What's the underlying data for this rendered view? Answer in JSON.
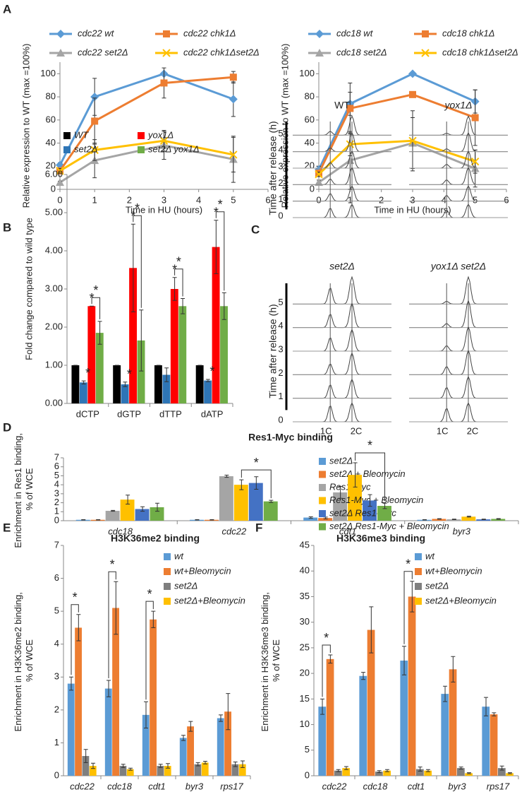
{
  "panel_labels": [
    "A",
    "B",
    "C",
    "D",
    "E",
    "F"
  ],
  "flow_cytometry": {
    "column_titles": [
      "WT",
      "yox1Δ",
      "set2Δ",
      "yox1Δ set2Δ"
    ],
    "axis_label": "Time after release (h)",
    "time_ticks": [
      5,
      4,
      3,
      2,
      1,
      0
    ],
    "peak_labels": [
      "1C",
      "2C"
    ]
  },
  "chart_data": [
    {
      "type": "line",
      "x_label": "Time in HU (hours)",
      "y_label": "Relative expression to WT  (max =100%)",
      "x": [
        0,
        1,
        3,
        5
      ],
      "xlim": [
        0,
        6
      ],
      "xticks": [
        0,
        1,
        2,
        3,
        4,
        5,
        6
      ],
      "ylim": [
        0,
        110
      ],
      "yticks": [
        0,
        20,
        40,
        60,
        80,
        100
      ],
      "series": [
        {
          "name": "cdc22 wt",
          "color": "#5b9bd5",
          "values": [
            21,
            80,
            100,
            78
          ],
          "errors": [
            2,
            16,
            0,
            15
          ]
        },
        {
          "name": "cdc22 chk1Δ",
          "color": "#ed7d31",
          "values": [
            16,
            59,
            92,
            97
          ],
          "errors": [
            2,
            20,
            13,
            5
          ]
        },
        {
          "name": "cdc22 set2Δ",
          "color": "#a5a5a5",
          "values": [
            6,
            25,
            38,
            26
          ],
          "errors": [
            1,
            15,
            12,
            20
          ]
        },
        {
          "name": "cdc22 chk1Δset2Δ",
          "color": "#ffc000",
          "values": [
            16,
            34,
            42,
            30
          ],
          "errors": [
            2,
            9,
            9,
            15
          ]
        }
      ]
    },
    {
      "type": "line",
      "x_label": "Time in HU (hours)",
      "y_label": "Relative expression to WT  (max =100%)",
      "x": [
        0,
        1,
        3,
        5
      ],
      "xlim": [
        0,
        6
      ],
      "xticks": [
        0,
        1,
        2,
        3,
        4,
        5,
        6
      ],
      "ylim": [
        0,
        110
      ],
      "yticks": [
        0,
        20,
        40,
        60,
        80,
        100
      ],
      "series": [
        {
          "name": "cdc18 wt",
          "color": "#5b9bd5",
          "values": [
            17,
            74,
            100,
            76
          ],
          "errors": [
            3,
            10,
            0,
            10
          ]
        },
        {
          "name": "cdc18 chk1Δ",
          "color": "#ed7d31",
          "values": [
            14,
            70,
            82,
            62
          ],
          "errors": [
            2,
            22,
            0,
            24
          ]
        },
        {
          "name": "cdc18 set2Δ",
          "color": "#a5a5a5",
          "values": [
            6,
            25,
            40,
            18
          ],
          "errors": [
            2,
            25,
            22,
            16
          ]
        },
        {
          "name": "cdc18 chk1Δset2Δ",
          "color": "#ffc000",
          "values": [
            13,
            39,
            42,
            24
          ],
          "errors": [
            2,
            10,
            26,
            10
          ]
        }
      ]
    },
    {
      "type": "bar",
      "y_label": "Fold change compared to wild type",
      "categories": [
        "dCTP",
        "dGTP",
        "dTTP",
        "dATP"
      ],
      "ylim": [
        0,
        6
      ],
      "yticks": [
        {
          "value": 0,
          "label": "0.00"
        },
        {
          "value": 1,
          "label": "1.00"
        },
        {
          "value": 2,
          "label": "2.00"
        },
        {
          "value": 3,
          "label": "3.00"
        },
        {
          "value": 4,
          "label": "4.00"
        },
        {
          "value": 5,
          "label": "5.00"
        },
        {
          "value": 6,
          "label": "6.00"
        }
      ],
      "series": [
        {
          "name": "WT",
          "color": "#000000",
          "values": [
            1,
            1,
            1,
            1
          ],
          "errors": [
            0,
            0,
            0,
            0
          ]
        },
        {
          "name": "set2Δ",
          "color": "#2e75b6",
          "values": [
            0.55,
            0.5,
            0.75,
            0.6
          ],
          "errors": [
            0.04,
            0.06,
            0.18,
            0.03
          ]
        },
        {
          "name": "yox1Δ",
          "color": "#ff0000",
          "values": [
            2.55,
            3.55,
            3.0,
            4.1
          ],
          "errors": [
            0,
            1.15,
            0.3,
            0.7
          ]
        },
        {
          "name": "set2Δ yox1Δ",
          "color": "#70ad47",
          "values": [
            1.85,
            1.65,
            2.55,
            2.55
          ],
          "errors": [
            0.3,
            0.8,
            0.2,
            0.35
          ]
        }
      ],
      "annotations": [
        "*",
        "*",
        "*",
        "*",
        "*",
        "*",
        "*",
        "*",
        "*",
        "*",
        "*"
      ]
    },
    {
      "type": "bar",
      "title": "Res1-Myc binding",
      "y_label": "Enrichment in Res1 binding, % of WCE",
      "categories": [
        "cdc18",
        "cdc22",
        "cdt1",
        "byr3"
      ],
      "ylim": [
        0,
        7
      ],
      "yticks": [
        0,
        1,
        2,
        3,
        4,
        5,
        6,
        7
      ],
      "series": [
        {
          "name": "set2Δ",
          "color": "#5b9bd5",
          "values": [
            0.1,
            0.1,
            0.35,
            0.1
          ],
          "errors": [
            0.02,
            0.02,
            0.08,
            0.02
          ]
        },
        {
          "name": "set2Δ + Bleomycin",
          "color": "#ed7d31",
          "values": [
            0.1,
            0.1,
            0.3,
            0.2
          ],
          "errors": [
            0.02,
            0.02,
            0.1,
            0.03
          ]
        },
        {
          "name": "Res1-Myc",
          "color": "#a5a5a5",
          "values": [
            1.1,
            4.95,
            3.15,
            0.15
          ],
          "errors": [
            0.05,
            0.12,
            0.65,
            0.03
          ]
        },
        {
          "name": "Res1-Myc + Bleomycin",
          "color": "#ffc000",
          "values": [
            2.35,
            4.0,
            5.1,
            0.45
          ],
          "errors": [
            0.5,
            0.55,
            1.35,
            0.05
          ]
        },
        {
          "name": "set2Δ Res1-Myc",
          "color": "#4472c4",
          "values": [
            1.3,
            4.2,
            2.25,
            0.15
          ],
          "errors": [
            0.25,
            0.7,
            0.65,
            0.03
          ]
        },
        {
          "name": "set2Δ Res1-Myc + Bleomycin",
          "color": "#70ad47",
          "values": [
            1.5,
            2.15,
            1.65,
            0.2
          ],
          "errors": [
            0.45,
            0.12,
            0.3,
            0.04
          ]
        }
      ],
      "annotations": [
        "*",
        "*"
      ]
    },
    {
      "type": "bar",
      "title": "H3K36me2 binding",
      "y_label": "Enrichment in H3K36me2 binding, % of WCE",
      "categories": [
        "cdc22",
        "cdc18",
        "cdt1",
        "byr3",
        "rps17"
      ],
      "ylim": [
        0,
        7
      ],
      "yticks": [
        0,
        1,
        2,
        3,
        4,
        5,
        6,
        7
      ],
      "series": [
        {
          "name": "wt",
          "color": "#5b9bd5",
          "values": [
            2.8,
            2.65,
            1.85,
            1.15,
            1.75
          ],
          "errors": [
            0.2,
            0.25,
            0.4,
            0.08,
            0.1
          ]
        },
        {
          "name": "wt+Bleomycin",
          "color": "#ed7d31",
          "values": [
            4.5,
            5.1,
            4.75,
            1.5,
            1.95
          ],
          "errors": [
            0.4,
            0.8,
            0.25,
            0.15,
            0.55
          ]
        },
        {
          "name": "set2Δ",
          "color": "#7f7f7f",
          "values": [
            0.6,
            0.3,
            0.3,
            0.35,
            0.35
          ],
          "errors": [
            0.2,
            0.05,
            0.05,
            0.05,
            0.07
          ]
        },
        {
          "name": "set2Δ+Bleomycin",
          "color": "#ffc000",
          "values": [
            0.3,
            0.2,
            0.3,
            0.4,
            0.35
          ],
          "errors": [
            0.08,
            0.03,
            0.07,
            0.04,
            0.1
          ]
        }
      ],
      "annotations": [
        "*",
        "*",
        "*"
      ]
    },
    {
      "type": "bar",
      "title": "H3K36me3 binding",
      "y_label": "Enrichment in H3K36me3 binding, % of WCE",
      "categories": [
        "cdc22",
        "cdc18",
        "cdt1",
        "byr3",
        "rps17"
      ],
      "ylim": [
        0,
        45
      ],
      "yticks": [
        0,
        5,
        10,
        15,
        20,
        25,
        30,
        35,
        40,
        45
      ],
      "series": [
        {
          "name": "wt",
          "color": "#5b9bd5",
          "values": [
            13.5,
            19.5,
            22.5,
            16,
            13.5
          ],
          "errors": [
            1.5,
            0.7,
            2.8,
            1.5,
            1.8
          ]
        },
        {
          "name": "wt+Bleomycin",
          "color": "#ed7d31",
          "values": [
            22.8,
            28.5,
            35,
            20.8,
            12
          ],
          "errors": [
            0.8,
            4.5,
            3,
            2.5,
            0.3
          ]
        },
        {
          "name": "set2Δ",
          "color": "#7f7f7f",
          "values": [
            1,
            0.8,
            1.3,
            1.5,
            1.5
          ],
          "errors": [
            0.2,
            0.2,
            0.4,
            0.2,
            0.4
          ]
        },
        {
          "name": "set2Δ+Bleomycin",
          "color": "#ffc000",
          "values": [
            1.5,
            1,
            1,
            0.5,
            0.5
          ],
          "errors": [
            0.3,
            0.2,
            0.2,
            0.1,
            0.1
          ]
        }
      ],
      "annotations": [
        "*",
        "*"
      ]
    }
  ]
}
